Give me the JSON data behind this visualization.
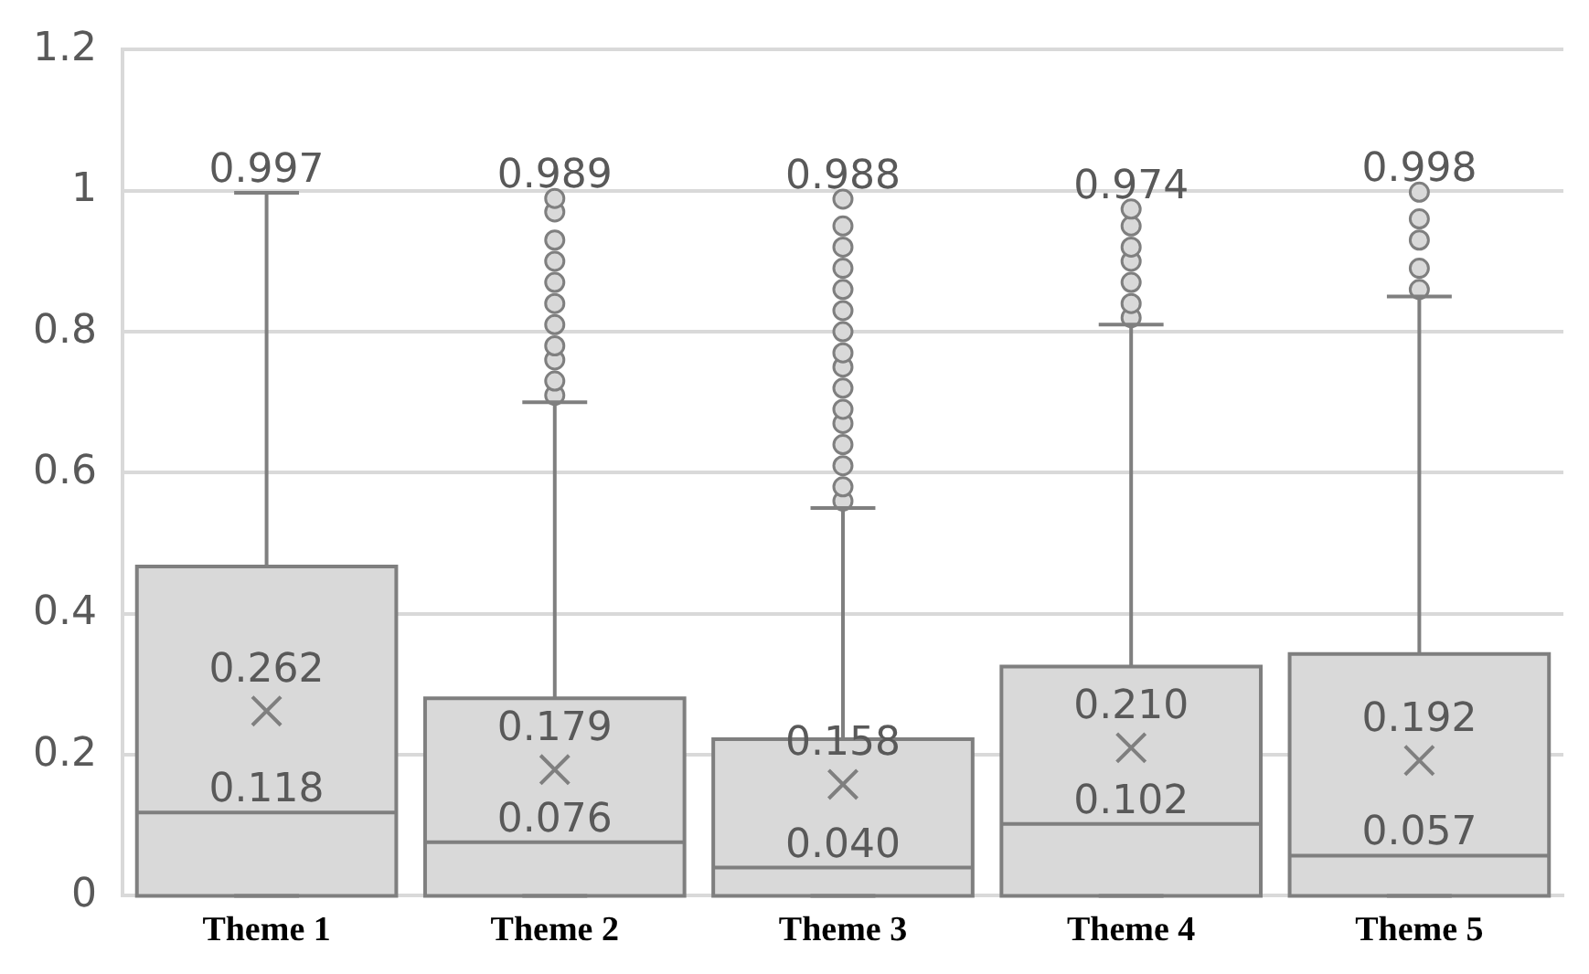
{
  "chart_data": {
    "type": "box",
    "categories": [
      "Theme 1",
      "Theme 2",
      "Theme 3",
      "Theme 4",
      "Theme 5"
    ],
    "color": "#d9d9d9",
    "boxes": [
      {
        "low": 0,
        "q1": 0,
        "median": 0.118,
        "q3": 0.467,
        "high": 0.997,
        "mean": 0.262
      },
      {
        "low": 0,
        "q1": 0,
        "median": 0.076,
        "q3": 0.28,
        "high": 0.7,
        "mean": 0.179,
        "outliers": [
          0.71,
          0.73,
          0.76,
          0.78,
          0.81,
          0.84,
          0.87,
          0.9,
          0.93,
          0.97,
          0.989
        ]
      },
      {
        "low": 0,
        "q1": 0,
        "median": 0.04,
        "q3": 0.222,
        "high": 0.55,
        "mean": 0.158,
        "outliers": [
          0.56,
          0.58,
          0.61,
          0.64,
          0.67,
          0.69,
          0.72,
          0.75,
          0.77,
          0.8,
          0.83,
          0.86,
          0.89,
          0.92,
          0.95,
          0.988
        ]
      },
      {
        "low": 0,
        "q1": 0,
        "median": 0.102,
        "q3": 0.325,
        "high": 0.81,
        "mean": 0.21,
        "outliers": [
          0.82,
          0.84,
          0.87,
          0.9,
          0.92,
          0.95,
          0.974
        ]
      },
      {
        "low": 0,
        "q1": 0,
        "median": 0.057,
        "q3": 0.343,
        "high": 0.85,
        "mean": 0.192,
        "outliers": [
          0.86,
          0.89,
          0.93,
          0.96,
          0.998
        ]
      }
    ],
    "ylim": [
      0,
      1.2
    ],
    "yticks": [
      0,
      0.2,
      0.4,
      0.6,
      0.8,
      1,
      1.2
    ],
    "grid": "y",
    "legend": false,
    "annotations": [
      {
        "text": "0.997",
        "x": "Theme 1",
        "y": 0.997
      },
      "0.989",
      "0.988",
      "0.974",
      "0.998",
      "0.262",
      "0.179",
      "0.158",
      "0.210",
      "0.192",
      {
        "text": "0.118",
        "x": "Theme 1",
        "y": 0.118
      },
      {
        "text": "0.076",
        "x": "Theme 2",
        "y": 0.076
      },
      {
        "text": "0.040",
        "x": "Theme 3",
        "y": 0.04
      },
      {
        "text": "0.102",
        "x": "Theme 4",
        "y": 0.102
      },
      {
        "text": "0.057",
        "x": "Theme 5",
        "y": 0.057
      }
    ]
  }
}
